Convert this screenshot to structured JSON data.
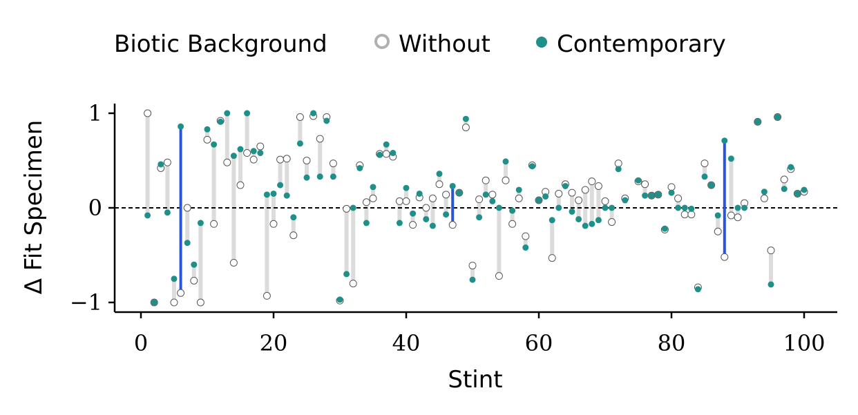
{
  "chart_data": {
    "type": "scatter",
    "xlabel": "Stint",
    "ylabel": "Δ Fit Specimen",
    "xlim": [
      -4,
      105
    ],
    "ylim": [
      -1.1,
      1.1
    ],
    "xticks": [
      0,
      20,
      40,
      60,
      80,
      100
    ],
    "yticks": [
      -1,
      0,
      1
    ],
    "ytick_labels": [
      "−1",
      "0",
      "1"
    ],
    "reference_line_y": 0,
    "legend": {
      "placement": "top",
      "title": "Biotic Background",
      "entries": [
        "Without",
        "Contemporary"
      ]
    },
    "colors": {
      "without_edge": "#555555",
      "contemporary": "#1f8f8a",
      "highlight": "#2b55d9",
      "connector": "#dcdcdc",
      "axis": "#000000"
    },
    "highlighted_stints": [
      6,
      47,
      88
    ],
    "points": [
      {
        "x": 1,
        "without": 1.0,
        "contemporary": -0.08
      },
      {
        "x": 2,
        "without": -1.0,
        "contemporary": -1.0
      },
      {
        "x": 3,
        "without": 0.42,
        "contemporary": 0.46
      },
      {
        "x": 4,
        "without": 0.48,
        "contemporary": -0.05
      },
      {
        "x": 5,
        "without": -1.0,
        "contemporary": -0.75
      },
      {
        "x": 6,
        "without": -0.9,
        "contemporary": 0.86
      },
      {
        "x": 7,
        "without": 0.0,
        "contemporary": -0.37
      },
      {
        "x": 8,
        "without": -0.77,
        "contemporary": -0.6
      },
      {
        "x": 9,
        "without": -1.0,
        "contemporary": -0.16
      },
      {
        "x": 10,
        "without": 0.72,
        "contemporary": 0.83
      },
      {
        "x": 11,
        "without": -0.17,
        "contemporary": 0.67
      },
      {
        "x": 12,
        "without": 0.92,
        "contemporary": 0.91
      },
      {
        "x": 13,
        "without": 0.48,
        "contemporary": 1.0
      },
      {
        "x": 14,
        "without": -0.58,
        "contemporary": 0.55
      },
      {
        "x": 15,
        "without": 0.24,
        "contemporary": 0.62
      },
      {
        "x": 16,
        "without": 0.58,
        "contemporary": 1.0
      },
      {
        "x": 17,
        "without": 0.51,
        "contemporary": 0.6
      },
      {
        "x": 18,
        "without": 0.65,
        "contemporary": 0.58
      },
      {
        "x": 19,
        "without": -0.93,
        "contemporary": 0.14
      },
      {
        "x": 20,
        "without": -0.17,
        "contemporary": 0.15
      },
      {
        "x": 21,
        "without": 0.51,
        "contemporary": 0.24
      },
      {
        "x": 22,
        "without": 0.52,
        "contemporary": 0.13
      },
      {
        "x": 23,
        "without": -0.29,
        "contemporary": -0.1
      },
      {
        "x": 24,
        "without": 0.96,
        "contemporary": 0.68
      },
      {
        "x": 25,
        "without": 0.5,
        "contemporary": 0.32
      },
      {
        "x": 26,
        "without": 0.97,
        "contemporary": 1.0
      },
      {
        "x": 27,
        "without": 0.73,
        "contemporary": 0.33
      },
      {
        "x": 28,
        "without": 0.96,
        "contemporary": 0.92
      },
      {
        "x": 29,
        "without": 0.47,
        "contemporary": 0.33
      },
      {
        "x": 30,
        "without": -0.98,
        "contemporary": -0.97
      },
      {
        "x": 31,
        "without": -0.01,
        "contemporary": -0.7
      },
      {
        "x": 32,
        "without": -0.8,
        "contemporary": 0.0
      },
      {
        "x": 33,
        "without": 0.45,
        "contemporary": 0.42
      },
      {
        "x": 34,
        "without": 0.06,
        "contemporary": -0.16
      },
      {
        "x": 35,
        "without": 0.1,
        "contemporary": 0.22
      },
      {
        "x": 36,
        "without": 0.57,
        "contemporary": 0.56
      },
      {
        "x": 37,
        "without": 0.57,
        "contemporary": 0.67
      },
      {
        "x": 38,
        "without": 0.54,
        "contemporary": 0.58
      },
      {
        "x": 39,
        "without": 0.07,
        "contemporary": -0.16
      },
      {
        "x": 40,
        "without": 0.07,
        "contemporary": 0.21
      },
      {
        "x": 41,
        "without": -0.18,
        "contemporary": -0.06
      },
      {
        "x": 42,
        "without": 0.11,
        "contemporary": 0.15
      },
      {
        "x": 43,
        "without": 0.0,
        "contemporary": -0.12
      },
      {
        "x": 44,
        "without": 0.1,
        "contemporary": -0.19
      },
      {
        "x": 45,
        "without": 0.25,
        "contemporary": 0.36
      },
      {
        "x": 46,
        "without": 0.14,
        "contemporary": -0.07
      },
      {
        "x": 47,
        "without": -0.18,
        "contemporary": 0.23
      },
      {
        "x": 48,
        "without": 0.16,
        "contemporary": 0.16
      },
      {
        "x": 49,
        "without": 0.85,
        "contemporary": 0.94
      },
      {
        "x": 50,
        "without": -0.61,
        "contemporary": -0.76
      },
      {
        "x": 51,
        "without": 0.09,
        "contemporary": -0.1
      },
      {
        "x": 52,
        "without": 0.29,
        "contemporary": 0.14
      },
      {
        "x": 53,
        "without": 0.14,
        "contemporary": 0.07
      },
      {
        "x": 54,
        "without": -0.72,
        "contemporary": 0.0
      },
      {
        "x": 55,
        "without": 0.29,
        "contemporary": 0.49
      },
      {
        "x": 56,
        "without": -0.17,
        "contemporary": -0.03
      },
      {
        "x": 57,
        "without": 0.1,
        "contemporary": 0.19
      },
      {
        "x": 58,
        "without": -0.3,
        "contemporary": -0.42
      },
      {
        "x": 59,
        "without": 0.45,
        "contemporary": 0.44
      },
      {
        "x": 60,
        "without": 0.08,
        "contemporary": 0.08
      },
      {
        "x": 61,
        "without": 0.17,
        "contemporary": 0.12
      },
      {
        "x": 62,
        "without": -0.53,
        "contemporary": -0.13
      },
      {
        "x": 63,
        "without": 0.15,
        "contemporary": 0.0
      },
      {
        "x": 64,
        "without": 0.25,
        "contemporary": 0.23
      },
      {
        "x": 65,
        "without": 0.16,
        "contemporary": -0.04
      },
      {
        "x": 66,
        "without": 0.08,
        "contemporary": -0.12
      },
      {
        "x": 67,
        "without": 0.19,
        "contemporary": -0.19
      },
      {
        "x": 68,
        "without": 0.28,
        "contemporary": -0.17
      },
      {
        "x": 69,
        "without": 0.23,
        "contemporary": -0.13
      },
      {
        "x": 70,
        "without": 0.07,
        "contemporary": 0.0
      },
      {
        "x": 71,
        "without": -0.15,
        "contemporary": 0.0
      },
      {
        "x": 72,
        "without": 0.47,
        "contemporary": 0.41
      },
      {
        "x": 73,
        "without": 0.1,
        "contemporary": 0.08
      },
      {
        "x": 75,
        "without": 0.28,
        "contemporary": 0.29
      },
      {
        "x": 76,
        "without": 0.25,
        "contemporary": 0.13
      },
      {
        "x": 77,
        "without": 0.13,
        "contemporary": 0.13
      },
      {
        "x": 78,
        "without": 0.14,
        "contemporary": 0.14
      },
      {
        "x": 79,
        "without": -0.23,
        "contemporary": -0.22
      },
      {
        "x": 80,
        "without": 0.22,
        "contemporary": 0.16
      },
      {
        "x": 81,
        "without": 0.1,
        "contemporary": 0.0
      },
      {
        "x": 82,
        "without": -0.07,
        "contemporary": 0.0
      },
      {
        "x": 83,
        "without": -0.07,
        "contemporary": -0.01
      },
      {
        "x": 84,
        "without": -0.84,
        "contemporary": -0.86
      },
      {
        "x": 85,
        "without": 0.47,
        "contemporary": 0.33
      },
      {
        "x": 86,
        "without": 0.24,
        "contemporary": 0.24
      },
      {
        "x": 87,
        "without": -0.25,
        "contemporary": -0.08
      },
      {
        "x": 88,
        "without": -0.52,
        "contemporary": 0.71
      },
      {
        "x": 89,
        "without": -0.08,
        "contemporary": 0.52
      },
      {
        "x": 90,
        "without": -0.1,
        "contemporary": 0.0
      },
      {
        "x": 91,
        "without": 0.05,
        "contemporary": 0.0
      },
      {
        "x": 93,
        "without": 0.91,
        "contemporary": 0.91
      },
      {
        "x": 94,
        "without": 0.1,
        "contemporary": 0.17
      },
      {
        "x": 95,
        "without": -0.45,
        "contemporary": -0.81
      },
      {
        "x": 96,
        "without": 0.96,
        "contemporary": 0.96
      },
      {
        "x": 97,
        "without": 0.3,
        "contemporary": 0.2
      },
      {
        "x": 98,
        "without": 0.41,
        "contemporary": 0.43
      },
      {
        "x": 99,
        "without": 0.15,
        "contemporary": 0.15
      },
      {
        "x": 100,
        "without": 0.17,
        "contemporary": 0.19
      }
    ]
  }
}
